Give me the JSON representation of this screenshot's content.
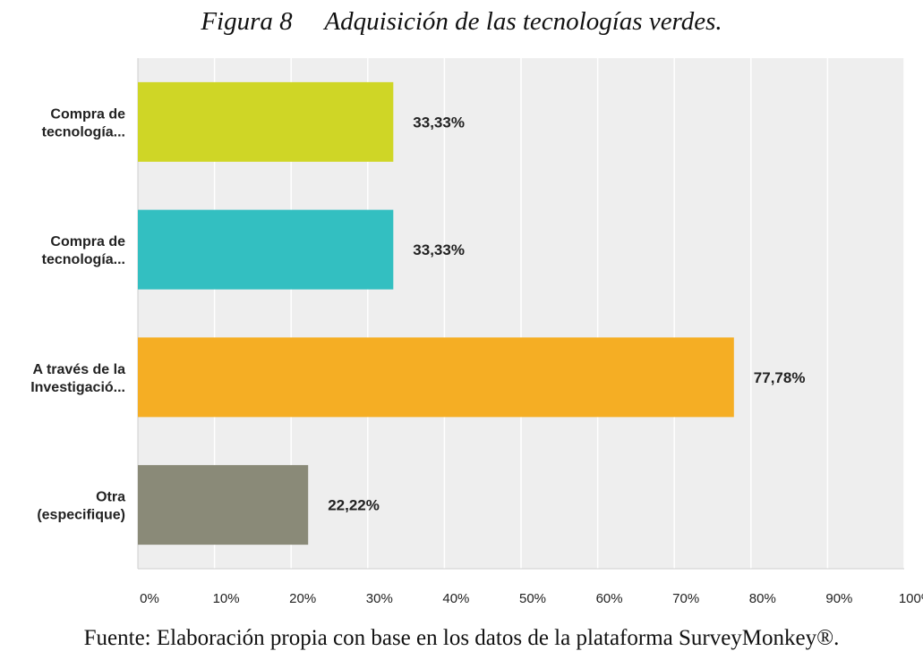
{
  "figure": {
    "number": "Figura 8",
    "title": "Adquisición de las tecnologías verdes.",
    "source": "Fuente: Elaboración propia con base en los datos de la plataforma SurveyMonkey®."
  },
  "chart_data": {
    "type": "bar",
    "orientation": "horizontal",
    "categories": [
      [
        "Compra de",
        "tecnología..."
      ],
      [
        "Compra de",
        "tecnología..."
      ],
      [
        "A través de la",
        "Investigació..."
      ],
      [
        "Otra",
        "(especifique)"
      ]
    ],
    "values": [
      33.33,
      33.33,
      77.78,
      22.22
    ],
    "value_labels": [
      "33,33%",
      "33,33%",
      "77,78%",
      "22,22%"
    ],
    "colors": [
      "#cfd626",
      "#33bfc1",
      "#f5ae24",
      "#8a8a78"
    ],
    "xlim": [
      0,
      100
    ],
    "xticks": [
      "0%",
      "10%",
      "20%",
      "30%",
      "40%",
      "50%",
      "60%",
      "70%",
      "80%",
      "90%",
      "100%"
    ],
    "grid": true,
    "background": "#eeeeee",
    "gridline_color": "#ffffff"
  }
}
